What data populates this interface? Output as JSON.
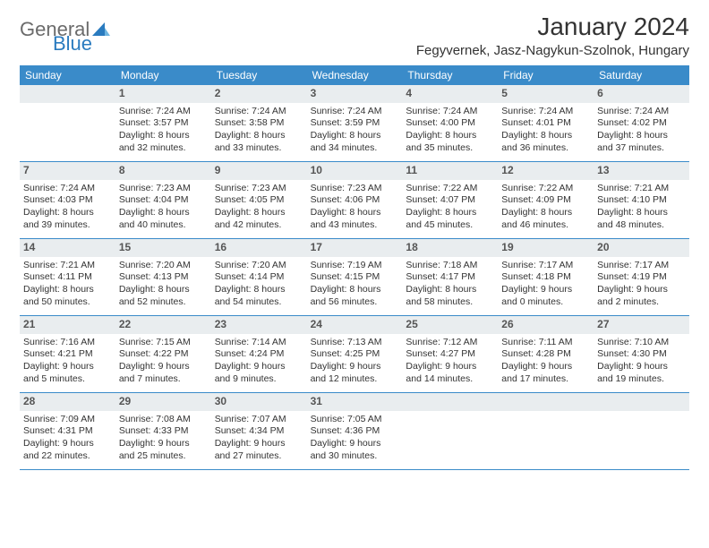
{
  "logo": {
    "text1": "General",
    "text2": "Blue"
  },
  "title": "January 2024",
  "location": "Fegyvernek, Jasz-Nagykun-Szolnok, Hungary",
  "weekdays": [
    "Sunday",
    "Monday",
    "Tuesday",
    "Wednesday",
    "Thursday",
    "Friday",
    "Saturday"
  ],
  "colors": {
    "header_bg": "#3a8bc9",
    "header_text": "#ffffff",
    "daynum_bg": "#e9edef",
    "divider": "#3a8bc9",
    "logo_gray": "#6b6b6b",
    "logo_blue": "#2a7bbf"
  },
  "weeks": [
    [
      {
        "num": "",
        "lines": []
      },
      {
        "num": "1",
        "lines": [
          "Sunrise: 7:24 AM",
          "Sunset: 3:57 PM",
          "Daylight: 8 hours",
          "and 32 minutes."
        ]
      },
      {
        "num": "2",
        "lines": [
          "Sunrise: 7:24 AM",
          "Sunset: 3:58 PM",
          "Daylight: 8 hours",
          "and 33 minutes."
        ]
      },
      {
        "num": "3",
        "lines": [
          "Sunrise: 7:24 AM",
          "Sunset: 3:59 PM",
          "Daylight: 8 hours",
          "and 34 minutes."
        ]
      },
      {
        "num": "4",
        "lines": [
          "Sunrise: 7:24 AM",
          "Sunset: 4:00 PM",
          "Daylight: 8 hours",
          "and 35 minutes."
        ]
      },
      {
        "num": "5",
        "lines": [
          "Sunrise: 7:24 AM",
          "Sunset: 4:01 PM",
          "Daylight: 8 hours",
          "and 36 minutes."
        ]
      },
      {
        "num": "6",
        "lines": [
          "Sunrise: 7:24 AM",
          "Sunset: 4:02 PM",
          "Daylight: 8 hours",
          "and 37 minutes."
        ]
      }
    ],
    [
      {
        "num": "7",
        "lines": [
          "Sunrise: 7:24 AM",
          "Sunset: 4:03 PM",
          "Daylight: 8 hours",
          "and 39 minutes."
        ]
      },
      {
        "num": "8",
        "lines": [
          "Sunrise: 7:23 AM",
          "Sunset: 4:04 PM",
          "Daylight: 8 hours",
          "and 40 minutes."
        ]
      },
      {
        "num": "9",
        "lines": [
          "Sunrise: 7:23 AM",
          "Sunset: 4:05 PM",
          "Daylight: 8 hours",
          "and 42 minutes."
        ]
      },
      {
        "num": "10",
        "lines": [
          "Sunrise: 7:23 AM",
          "Sunset: 4:06 PM",
          "Daylight: 8 hours",
          "and 43 minutes."
        ]
      },
      {
        "num": "11",
        "lines": [
          "Sunrise: 7:22 AM",
          "Sunset: 4:07 PM",
          "Daylight: 8 hours",
          "and 45 minutes."
        ]
      },
      {
        "num": "12",
        "lines": [
          "Sunrise: 7:22 AM",
          "Sunset: 4:09 PM",
          "Daylight: 8 hours",
          "and 46 minutes."
        ]
      },
      {
        "num": "13",
        "lines": [
          "Sunrise: 7:21 AM",
          "Sunset: 4:10 PM",
          "Daylight: 8 hours",
          "and 48 minutes."
        ]
      }
    ],
    [
      {
        "num": "14",
        "lines": [
          "Sunrise: 7:21 AM",
          "Sunset: 4:11 PM",
          "Daylight: 8 hours",
          "and 50 minutes."
        ]
      },
      {
        "num": "15",
        "lines": [
          "Sunrise: 7:20 AM",
          "Sunset: 4:13 PM",
          "Daylight: 8 hours",
          "and 52 minutes."
        ]
      },
      {
        "num": "16",
        "lines": [
          "Sunrise: 7:20 AM",
          "Sunset: 4:14 PM",
          "Daylight: 8 hours",
          "and 54 minutes."
        ]
      },
      {
        "num": "17",
        "lines": [
          "Sunrise: 7:19 AM",
          "Sunset: 4:15 PM",
          "Daylight: 8 hours",
          "and 56 minutes."
        ]
      },
      {
        "num": "18",
        "lines": [
          "Sunrise: 7:18 AM",
          "Sunset: 4:17 PM",
          "Daylight: 8 hours",
          "and 58 minutes."
        ]
      },
      {
        "num": "19",
        "lines": [
          "Sunrise: 7:17 AM",
          "Sunset: 4:18 PM",
          "Daylight: 9 hours",
          "and 0 minutes."
        ]
      },
      {
        "num": "20",
        "lines": [
          "Sunrise: 7:17 AM",
          "Sunset: 4:19 PM",
          "Daylight: 9 hours",
          "and 2 minutes."
        ]
      }
    ],
    [
      {
        "num": "21",
        "lines": [
          "Sunrise: 7:16 AM",
          "Sunset: 4:21 PM",
          "Daylight: 9 hours",
          "and 5 minutes."
        ]
      },
      {
        "num": "22",
        "lines": [
          "Sunrise: 7:15 AM",
          "Sunset: 4:22 PM",
          "Daylight: 9 hours",
          "and 7 minutes."
        ]
      },
      {
        "num": "23",
        "lines": [
          "Sunrise: 7:14 AM",
          "Sunset: 4:24 PM",
          "Daylight: 9 hours",
          "and 9 minutes."
        ]
      },
      {
        "num": "24",
        "lines": [
          "Sunrise: 7:13 AM",
          "Sunset: 4:25 PM",
          "Daylight: 9 hours",
          "and 12 minutes."
        ]
      },
      {
        "num": "25",
        "lines": [
          "Sunrise: 7:12 AM",
          "Sunset: 4:27 PM",
          "Daylight: 9 hours",
          "and 14 minutes."
        ]
      },
      {
        "num": "26",
        "lines": [
          "Sunrise: 7:11 AM",
          "Sunset: 4:28 PM",
          "Daylight: 9 hours",
          "and 17 minutes."
        ]
      },
      {
        "num": "27",
        "lines": [
          "Sunrise: 7:10 AM",
          "Sunset: 4:30 PM",
          "Daylight: 9 hours",
          "and 19 minutes."
        ]
      }
    ],
    [
      {
        "num": "28",
        "lines": [
          "Sunrise: 7:09 AM",
          "Sunset: 4:31 PM",
          "Daylight: 9 hours",
          "and 22 minutes."
        ]
      },
      {
        "num": "29",
        "lines": [
          "Sunrise: 7:08 AM",
          "Sunset: 4:33 PM",
          "Daylight: 9 hours",
          "and 25 minutes."
        ]
      },
      {
        "num": "30",
        "lines": [
          "Sunrise: 7:07 AM",
          "Sunset: 4:34 PM",
          "Daylight: 9 hours",
          "and 27 minutes."
        ]
      },
      {
        "num": "31",
        "lines": [
          "Sunrise: 7:05 AM",
          "Sunset: 4:36 PM",
          "Daylight: 9 hours",
          "and 30 minutes."
        ]
      },
      {
        "num": "",
        "lines": []
      },
      {
        "num": "",
        "lines": []
      },
      {
        "num": "",
        "lines": []
      }
    ]
  ]
}
